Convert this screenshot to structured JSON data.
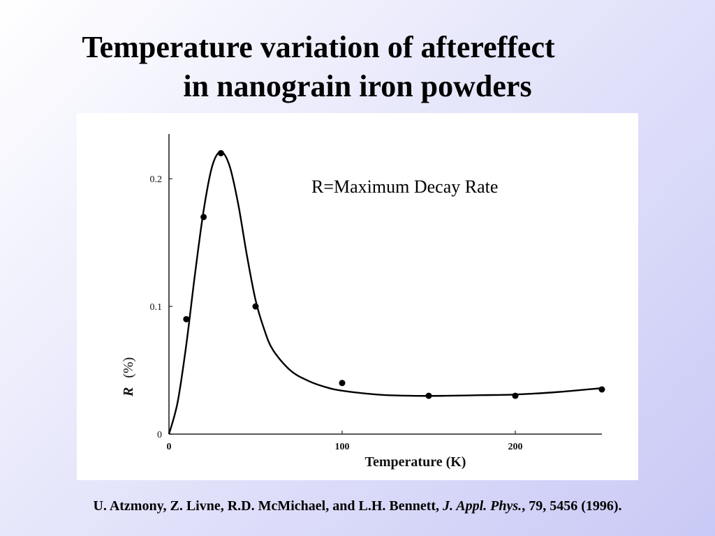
{
  "slide": {
    "title_line_1": "Temperature variation of aftereffect",
    "title_line_2": "in nanograin iron powders",
    "annotation": "R=Maximum Decay Rate",
    "citation": {
      "authors": "U. Atzmony, Z. Livne, R.D. McMichael, and L.H. Bennett, ",
      "journal": "J. Appl. Phys.",
      "details": ", 79, 5456 (1996)."
    }
  },
  "chart_data": {
    "type": "scatter",
    "title": "",
    "xlabel": "Temperature (K)",
    "ylabel_symbol": "R",
    "ylabel_unit": "(%)",
    "xlim": [
      0,
      250
    ],
    "ylim": [
      0,
      0.235
    ],
    "x_ticks": [
      0,
      100,
      200
    ],
    "x_tick_labels": [
      "0",
      "100",
      "200"
    ],
    "y_ticks": [
      0,
      0.1,
      0.2
    ],
    "y_tick_labels": [
      "0",
      "0.1",
      "0.2"
    ],
    "grid": false,
    "points": [
      {
        "x": 10,
        "y": 0.09
      },
      {
        "x": 20,
        "y": 0.17
      },
      {
        "x": 30,
        "y": 0.22
      },
      {
        "x": 50,
        "y": 0.1
      },
      {
        "x": 100,
        "y": 0.04
      },
      {
        "x": 150,
        "y": 0.03
      },
      {
        "x": 200,
        "y": 0.03
      },
      {
        "x": 250,
        "y": 0.035
      }
    ],
    "fit_curve": [
      [
        0,
        0
      ],
      [
        5,
        0.025
      ],
      [
        10,
        0.07
      ],
      [
        15,
        0.125
      ],
      [
        20,
        0.175
      ],
      [
        25,
        0.21
      ],
      [
        30,
        0.221
      ],
      [
        35,
        0.21
      ],
      [
        40,
        0.18
      ],
      [
        45,
        0.14
      ],
      [
        50,
        0.105
      ],
      [
        55,
        0.082
      ],
      [
        60,
        0.066
      ],
      [
        70,
        0.05
      ],
      [
        80,
        0.042
      ],
      [
        90,
        0.037
      ],
      [
        100,
        0.034
      ],
      [
        120,
        0.031
      ],
      [
        140,
        0.03
      ],
      [
        160,
        0.03
      ],
      [
        180,
        0.0305
      ],
      [
        200,
        0.031
      ],
      [
        225,
        0.033
      ],
      [
        250,
        0.036
      ]
    ]
  }
}
